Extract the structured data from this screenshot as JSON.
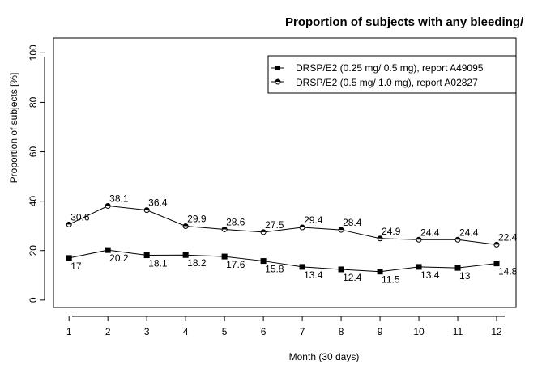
{
  "chart_data": {
    "type": "line",
    "title": "Proportion of subjects with any bleeding/",
    "xlabel": "Month (30 days)",
    "ylabel": "Proportion of subjects [%]",
    "categories": [
      "1",
      "2",
      "3",
      "4",
      "5",
      "6",
      "7",
      "8",
      "9",
      "10",
      "11",
      "12"
    ],
    "x": [
      1,
      2,
      3,
      4,
      5,
      6,
      7,
      8,
      9,
      10,
      11,
      12
    ],
    "xlim": [
      0.6,
      12.5
    ],
    "ylim": [
      -3,
      106
    ],
    "yticks": [
      0,
      20,
      40,
      60,
      80,
      100
    ],
    "yticks_labels": [
      "0",
      "20",
      "40",
      "60",
      "80",
      "100"
    ],
    "grid": false,
    "legend_position": "top-right",
    "series": [
      {
        "name": "DRSP/E2 (0.25 mg/ 0.5 mg), report A49095",
        "marker": "filled-square",
        "values": [
          17,
          20.2,
          18.1,
          18.2,
          17.6,
          15.8,
          13.4,
          12.4,
          11.5,
          13.4,
          13,
          14.8
        ],
        "labels": [
          "17",
          "20.2",
          "18.1",
          "18.2",
          "17.6",
          "15.8",
          "13.4",
          "12.4",
          "11.5",
          "13.4",
          "13",
          "14.8"
        ]
      },
      {
        "name": "DRSP/E2 (0.5 mg/ 1.0 mg), report A02827",
        "marker": "half-filled-circle",
        "values": [
          30.6,
          38.1,
          36.4,
          29.9,
          28.6,
          27.5,
          29.4,
          28.4,
          24.9,
          24.4,
          24.4,
          22.4
        ],
        "labels": [
          "30.6",
          "38.1",
          "36.4",
          "29.9",
          "28.6",
          "27.5",
          "29.4",
          "28.4",
          "24.9",
          "24.4",
          "24.4",
          "22.4"
        ]
      }
    ]
  }
}
